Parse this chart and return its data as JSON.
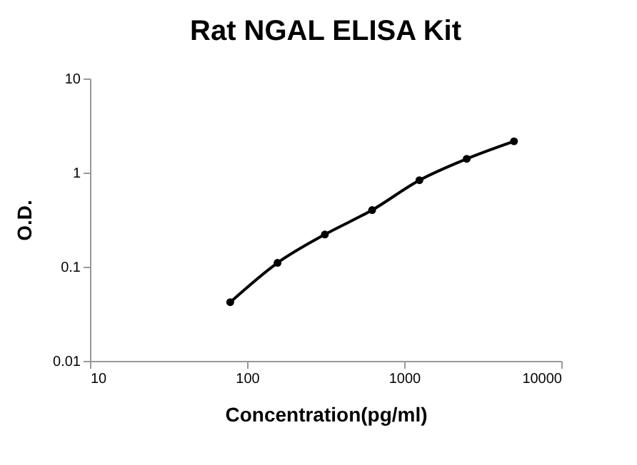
{
  "chart_data": {
    "type": "line",
    "title": "Rat NGAL ELISA Kit",
    "xlabel": "Concentration(pg/ml)",
    "ylabel": "O.D.",
    "x": [
      78.125,
      156.25,
      312.5,
      625,
      1250,
      2500,
      5000
    ],
    "series": [
      {
        "color": "#000000",
        "values": [
          0.042,
          0.11,
          0.22,
          0.4,
          0.83,
          1.4,
          2.15
        ]
      }
    ],
    "log": "xy",
    "xlim": [
      10,
      10000
    ],
    "xticks": [
      10,
      100,
      1000,
      10000
    ],
    "ylim": [
      0.01,
      10
    ],
    "yticks": [
      0.01,
      0.1,
      1,
      10
    ],
    "grid": false,
    "marker": "circle",
    "line_style": "solid"
  }
}
